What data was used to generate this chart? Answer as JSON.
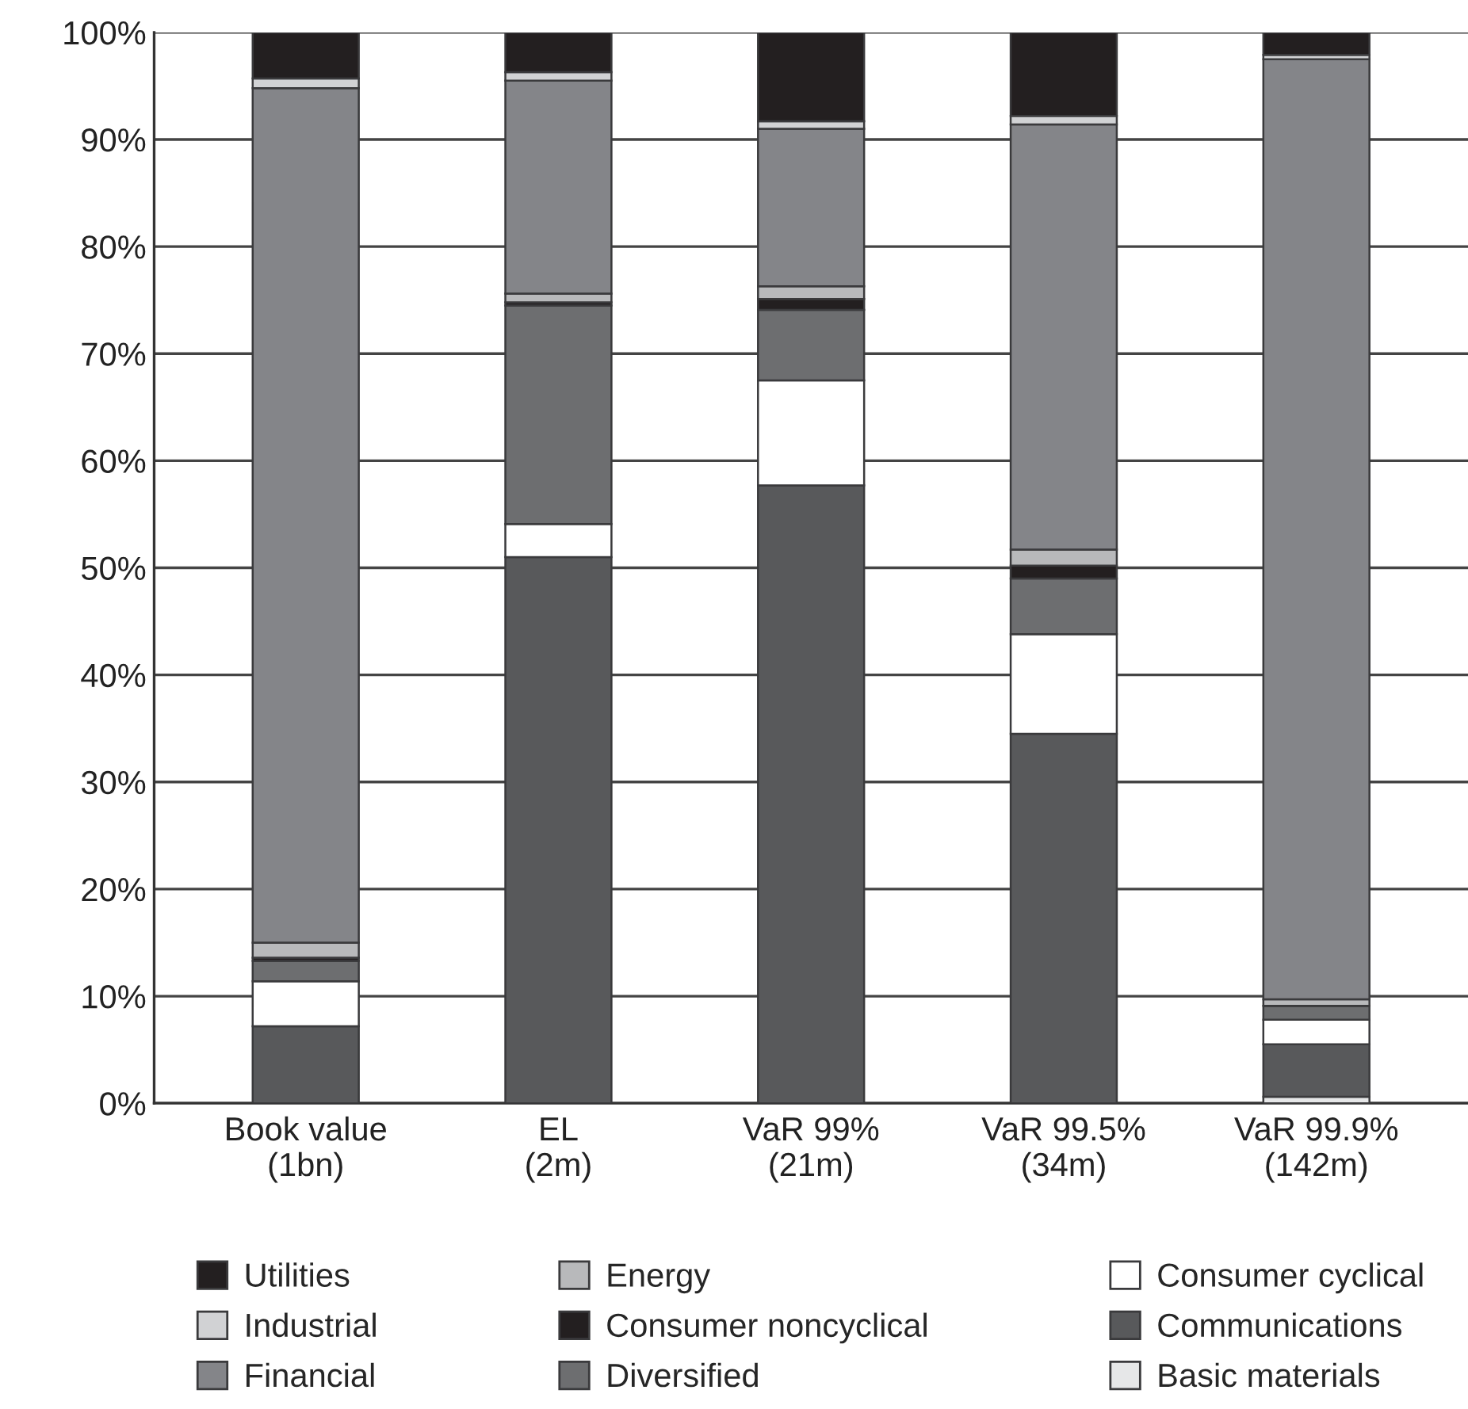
{
  "chart_data": {
    "type": "bar",
    "stacked": true,
    "categories": [
      "Book value\n(1bn)",
      "EL\n(2m)",
      "VaR 99%\n(21m)",
      "VaR 99.5%\n(34m)",
      "VaR 99.9%\n(142m)"
    ],
    "series": [
      {
        "name": "Basic materials",
        "color": "#e6e7e8",
        "values": [
          0,
          0,
          0,
          0,
          0.6
        ]
      },
      {
        "name": "Communications",
        "color": "#58595b",
        "values": [
          7.2,
          51,
          57.7,
          34.5,
          4.9
        ]
      },
      {
        "name": "Consumer cyclical",
        "color": "#ffffff",
        "values": [
          4.2,
          3.1,
          9.8,
          9.3,
          2.3
        ]
      },
      {
        "name": "Diversified",
        "color": "#6d6e70",
        "values": [
          1.9,
          20.4,
          6.6,
          5.2,
          1.3
        ]
      },
      {
        "name": "Consumer noncyclical",
        "color": "#231f20",
        "values": [
          0.3,
          0.3,
          1.0,
          1.2,
          0
        ]
      },
      {
        "name": "Energy",
        "color": "#b8b9bb",
        "values": [
          1.4,
          0.8,
          1.2,
          1.5,
          0.6
        ]
      },
      {
        "name": "Financial",
        "color": "#848589",
        "values": [
          79.8,
          19.9,
          14.7,
          39.7,
          87.8
        ]
      },
      {
        "name": "Industrial",
        "color": "#d1d2d4",
        "values": [
          0.9,
          0.8,
          0.7,
          0.8,
          0.4
        ]
      },
      {
        "name": "Utilities",
        "color": "#231f20",
        "values": [
          4.3,
          3.7,
          8.3,
          7.8,
          2.1
        ]
      }
    ],
    "ylim": [
      0,
      100
    ],
    "yticks": [
      {
        "value": 0,
        "label": "0%"
      },
      {
        "value": 10,
        "label": "10%"
      },
      {
        "value": 20,
        "label": "20%"
      },
      {
        "value": 30,
        "label": "30%"
      },
      {
        "value": 40,
        "label": "40%"
      },
      {
        "value": 50,
        "label": "50%"
      },
      {
        "value": 60,
        "label": "60%"
      },
      {
        "value": 70,
        "label": "70%"
      },
      {
        "value": 80,
        "label": "80%"
      },
      {
        "value": 90,
        "label": "90%"
      },
      {
        "value": 100,
        "label": "100%"
      }
    ],
    "grid": "y",
    "legend": "bottom"
  }
}
